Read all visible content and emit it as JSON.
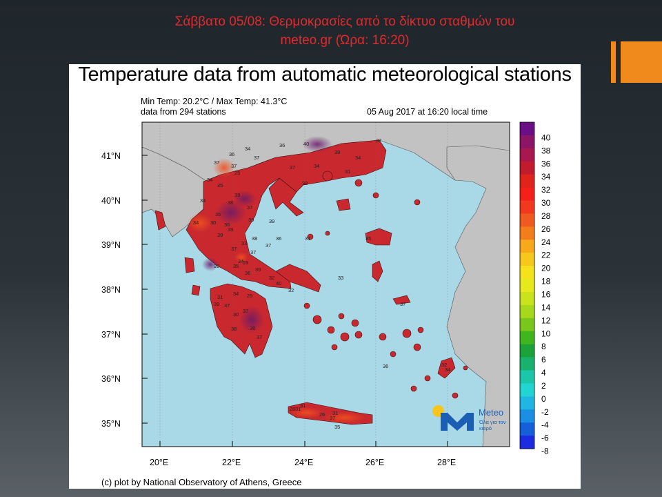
{
  "slide": {
    "title_line1": "Σάββατο 05/08: Θερμοκρασίες από το δίκτυο σταθμών του",
    "title_line2": "meteo.gr (Ώρα: 16:20)",
    "title_color": "#e4282b",
    "accent_color": "#f08a1c"
  },
  "figure": {
    "title": "Temperature data from automatic meteorological stations",
    "min_max": "Min Temp: 20.2°C / Max Temp: 41.3°C",
    "stations": "data from 294 stations",
    "datetime": "05 Aug 2017 at 16:20 local time",
    "credit": "(c) plot by National Observatory of Athens, Greece"
  },
  "map": {
    "sea_color": "#a9d8e6",
    "land_color": "#c2c2c2",
    "greece_color": "#c9282e",
    "lat_labels": [
      "41°N",
      "40°N",
      "39°N",
      "38°N",
      "37°N",
      "36°N",
      "35°N"
    ],
    "lon_labels": [
      "20°E",
      "22°E",
      "24°E",
      "26°E",
      "28°E"
    ],
    "station_values": [
      "37",
      "34",
      "36",
      "37",
      "37",
      "34",
      "35",
      "25",
      "36",
      "40",
      "39",
      "34",
      "37",
      "37",
      "38",
      "35",
      "39",
      "34",
      "30",
      "36",
      "39",
      "34",
      "39",
      "37",
      "33",
      "37",
      "34",
      "28",
      "29",
      "35",
      "39",
      "36",
      "32",
      "31",
      "34",
      "29",
      "39",
      "37",
      "30",
      "37",
      "36",
      "38",
      "37",
      "40",
      "32",
      "28",
      "31",
      "31",
      "26",
      "31",
      "35",
      "37",
      "38",
      "37",
      "39",
      "36",
      "34",
      "31",
      "35",
      "33",
      "37",
      "36",
      "32",
      "34",
      "37",
      "38",
      "31",
      "39"
    ]
  },
  "colorbar": {
    "labels": [
      "40",
      "38",
      "36",
      "34",
      "32",
      "30",
      "28",
      "26",
      "24",
      "22",
      "20",
      "18",
      "16",
      "14",
      "12",
      "10",
      "8",
      "6",
      "4",
      "2",
      "0",
      "-2",
      "-4",
      "-6",
      "-8"
    ],
    "colors": [
      "#6a0f86",
      "#8c1566",
      "#a8174d",
      "#c21b2e",
      "#e0241c",
      "#f5201a",
      "#f2381e",
      "#f05a20",
      "#f37c1b",
      "#f7a81b",
      "#f7c81c",
      "#f5e21c",
      "#e6ea1c",
      "#c9e41c",
      "#a6d81c",
      "#7ac71c",
      "#3fb51e",
      "#1ba33a",
      "#18b26e",
      "#1bc7a8",
      "#22d5d3",
      "#1fb6e4",
      "#1a8fe3",
      "#155fd9",
      "#1d2be0"
    ]
  },
  "logo": {
    "name": "Meteo",
    "tagline": "Όλα για τον καιρό",
    "icon": "meteo-logo-icon"
  }
}
